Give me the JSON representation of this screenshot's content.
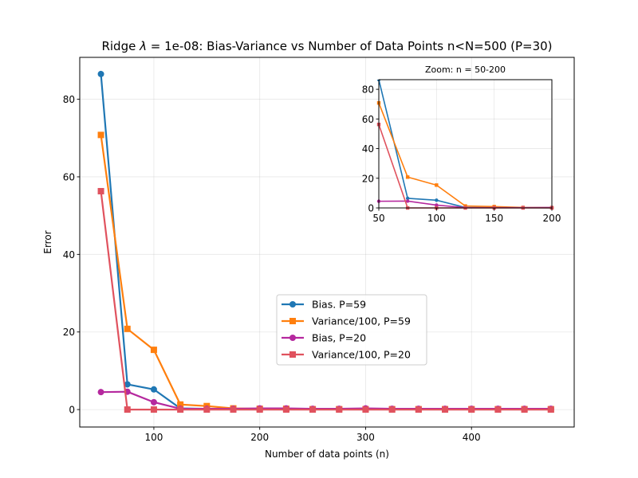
{
  "chart_data": [
    {
      "type": "line",
      "title_prefix": "Ridge ",
      "title_symbol": "λ",
      "title_suffix": " = 1e-08: Bias-Variance vs Number of Data Points n<N=500 (P=30)",
      "xlabel": "Number of data points (n)",
      "ylabel": "Error",
      "xlim": [
        30,
        497
      ],
      "ylim": [
        -4.5,
        90.8
      ],
      "xticks": [
        100,
        200,
        300,
        400
      ],
      "yticks": [
        0,
        20,
        40,
        60,
        80
      ],
      "grid": true,
      "legend_position": "center-right",
      "x": [
        50,
        75,
        100,
        125,
        150,
        175,
        200,
        225,
        250,
        275,
        300,
        325,
        350,
        375,
        400,
        425,
        450,
        475
      ],
      "series": [
        {
          "name": "Bias. P=59",
          "color": "#1f77b4",
          "marker": "circle",
          "values": [
            86.5,
            6.5,
            5.2,
            0.3,
            0.2,
            0.2,
            0.1,
            0.1,
            0.1,
            0.1,
            0.1,
            0.1,
            0.1,
            0.1,
            0.1,
            0.1,
            0.1,
            0.1
          ]
        },
        {
          "name": "Variance/100, P=59",
          "color": "#ff7f0e",
          "marker": "square",
          "values": [
            70.8,
            20.8,
            15.4,
            1.3,
            0.9,
            0.3,
            0.2,
            0.2,
            0.1,
            0.1,
            0.1,
            0.1,
            0.1,
            0.1,
            0.1,
            0.1,
            0.1,
            0.1
          ]
        },
        {
          "name": "Bias, P=20",
          "color": "#b5289e",
          "marker": "circle",
          "values": [
            4.5,
            4.6,
            1.9,
            0.2,
            0.2,
            0.2,
            0.3,
            0.3,
            0.2,
            0.2,
            0.3,
            0.2,
            0.2,
            0.2,
            0.2,
            0.2,
            0.2,
            0.2
          ]
        },
        {
          "name": "Variance/100, P=20",
          "color": "#e0525e",
          "marker": "square",
          "values": [
            56.3,
            0.0,
            0.0,
            0.0,
            0.0,
            0.0,
            0.0,
            0.0,
            0.0,
            0.0,
            0.0,
            0.0,
            0.0,
            0.0,
            0.0,
            0.0,
            0.0,
            0.0
          ]
        }
      ]
    },
    {
      "type": "line",
      "title": "Zoom: n = 50-200",
      "xlim": [
        50,
        200
      ],
      "ylim": [
        0,
        86.5
      ],
      "xticks": [
        50,
        100,
        150,
        200
      ],
      "yticks": [
        0,
        20,
        40,
        60,
        80
      ],
      "grid": true,
      "x": [
        50,
        75,
        100,
        125,
        150,
        175,
        200
      ],
      "series": [
        {
          "color": "#1f77b4",
          "values": [
            86.5,
            6.5,
            5.2,
            0.3,
            0.2,
            0.2,
            0.1
          ]
        },
        {
          "color": "#ff7f0e",
          "values": [
            70.8,
            20.8,
            15.4,
            1.3,
            0.9,
            0.3,
            0.2
          ]
        },
        {
          "color": "#b5289e",
          "values": [
            4.5,
            4.6,
            1.9,
            0.2,
            0.2,
            0.2,
            0.3
          ]
        },
        {
          "color": "#e0525e",
          "values": [
            56.3,
            0.0,
            0.0,
            0.0,
            0.0,
            0.0,
            0.0
          ]
        }
      ]
    }
  ]
}
